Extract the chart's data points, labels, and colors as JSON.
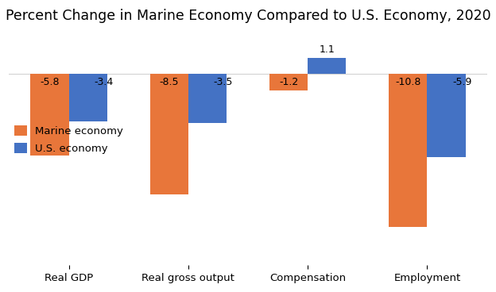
{
  "title": "Percent Change in Marine Economy Compared to U.S. Economy, 2020",
  "categories": [
    "Real GDP",
    "Real gross output",
    "Compensation",
    "Employment"
  ],
  "marine_values": [
    -5.8,
    -8.5,
    -1.2,
    -10.8
  ],
  "us_values": [
    -3.4,
    -3.5,
    1.1,
    -5.9
  ],
  "marine_color": "#E8763A",
  "us_color": "#4472C4",
  "legend_labels": [
    "Marine economy",
    "U.S. economy"
  ],
  "ylim": [
    -13.5,
    3.0
  ],
  "bar_width": 0.32,
  "background_color": "#ffffff",
  "label_fontsize": 9,
  "title_fontsize": 12.5
}
